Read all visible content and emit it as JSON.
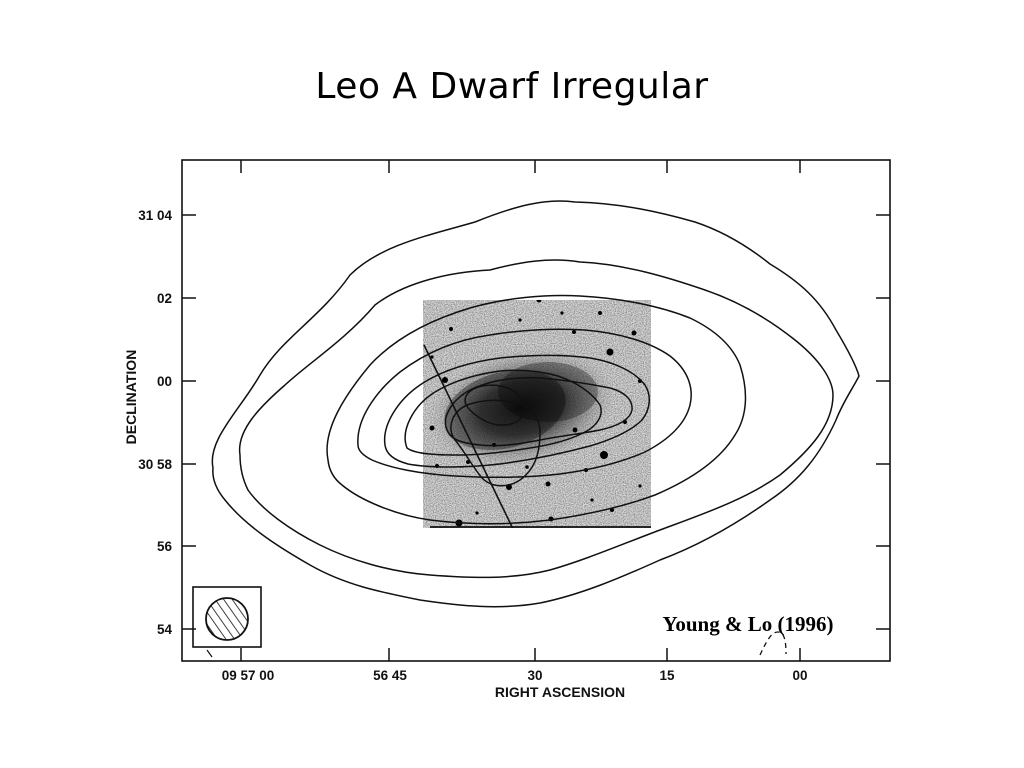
{
  "title": "Leo A Dwarf Irregular",
  "figure": {
    "x_axis_label": "RIGHT ASCENSION",
    "y_axis_label": "DECLINATION",
    "x_ticks": [
      "09 57 00",
      "56 45",
      "30",
      "15",
      "00"
    ],
    "y_ticks": [
      "31 04",
      "02",
      "00",
      "30 58",
      "56",
      "54"
    ],
    "credit": "Young & Lo (1996)",
    "colors": {
      "ink": "#111111",
      "background": "#ffffff"
    }
  }
}
